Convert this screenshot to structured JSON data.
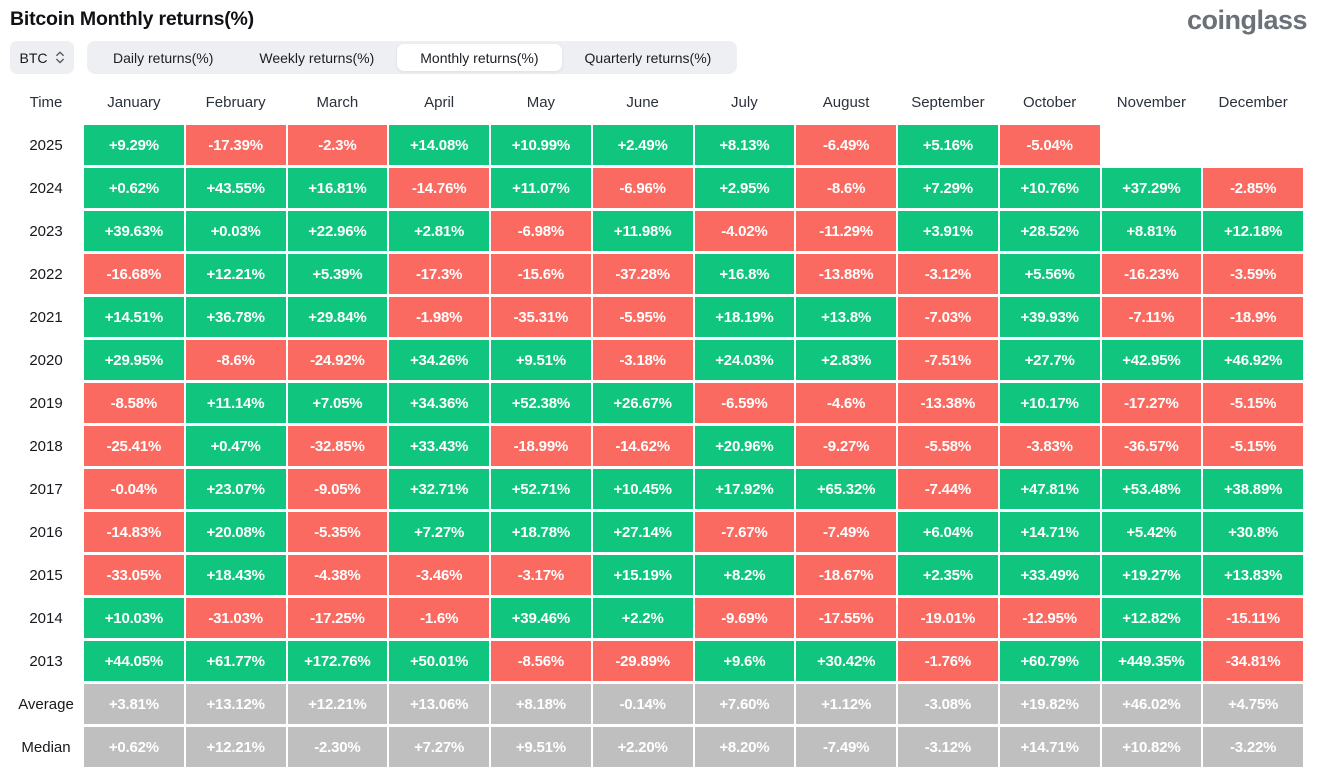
{
  "header": {
    "title": "Bitcoin Monthly returns(%)",
    "brand": "coinglass"
  },
  "controls": {
    "coin_select": {
      "value": "BTC"
    },
    "tabs": [
      {
        "label": "Daily returns(%)",
        "active": false
      },
      {
        "label": "Weekly returns(%)",
        "active": false
      },
      {
        "label": "Monthly returns(%)",
        "active": true
      },
      {
        "label": "Quarterly returns(%)",
        "active": false
      }
    ]
  },
  "colors": {
    "positive": "#10c57e",
    "negative": "#fa6a61",
    "neutral": "#bfbfbf"
  },
  "chart_data": {
    "type": "heatmap",
    "title": "Bitcoin Monthly returns(%)",
    "unit": "%",
    "time_label": "Time",
    "x_labels": [
      "January",
      "February",
      "March",
      "April",
      "May",
      "June",
      "July",
      "August",
      "September",
      "October",
      "November",
      "December"
    ],
    "rows": [
      {
        "label": "2025",
        "type": "year",
        "values": [
          "+9.29%",
          "-17.39%",
          "-2.3%",
          "+14.08%",
          "+10.99%",
          "+2.49%",
          "+8.13%",
          "-6.49%",
          "+5.16%",
          "-5.04%",
          null,
          null
        ]
      },
      {
        "label": "2024",
        "type": "year",
        "values": [
          "+0.62%",
          "+43.55%",
          "+16.81%",
          "-14.76%",
          "+11.07%",
          "-6.96%",
          "+2.95%",
          "-8.6%",
          "+7.29%",
          "+10.76%",
          "+37.29%",
          "-2.85%"
        ]
      },
      {
        "label": "2023",
        "type": "year",
        "values": [
          "+39.63%",
          "+0.03%",
          "+22.96%",
          "+2.81%",
          "-6.98%",
          "+11.98%",
          "-4.02%",
          "-11.29%",
          "+3.91%",
          "+28.52%",
          "+8.81%",
          "+12.18%"
        ]
      },
      {
        "label": "2022",
        "type": "year",
        "values": [
          "-16.68%",
          "+12.21%",
          "+5.39%",
          "-17.3%",
          "-15.6%",
          "-37.28%",
          "+16.8%",
          "-13.88%",
          "-3.12%",
          "+5.56%",
          "-16.23%",
          "-3.59%"
        ]
      },
      {
        "label": "2021",
        "type": "year",
        "values": [
          "+14.51%",
          "+36.78%",
          "+29.84%",
          "-1.98%",
          "-35.31%",
          "-5.95%",
          "+18.19%",
          "+13.8%",
          "-7.03%",
          "+39.93%",
          "-7.11%",
          "-18.9%"
        ]
      },
      {
        "label": "2020",
        "type": "year",
        "values": [
          "+29.95%",
          "-8.6%",
          "-24.92%",
          "+34.26%",
          "+9.51%",
          "-3.18%",
          "+24.03%",
          "+2.83%",
          "-7.51%",
          "+27.7%",
          "+42.95%",
          "+46.92%"
        ]
      },
      {
        "label": "2019",
        "type": "year",
        "values": [
          "-8.58%",
          "+11.14%",
          "+7.05%",
          "+34.36%",
          "+52.38%",
          "+26.67%",
          "-6.59%",
          "-4.6%",
          "-13.38%",
          "+10.17%",
          "-17.27%",
          "-5.15%"
        ]
      },
      {
        "label": "2018",
        "type": "year",
        "values": [
          "-25.41%",
          "+0.47%",
          "-32.85%",
          "+33.43%",
          "-18.99%",
          "-14.62%",
          "+20.96%",
          "-9.27%",
          "-5.58%",
          "-3.83%",
          "-36.57%",
          "-5.15%"
        ]
      },
      {
        "label": "2017",
        "type": "year",
        "values": [
          "-0.04%",
          "+23.07%",
          "-9.05%",
          "+32.71%",
          "+52.71%",
          "+10.45%",
          "+17.92%",
          "+65.32%",
          "-7.44%",
          "+47.81%",
          "+53.48%",
          "+38.89%"
        ]
      },
      {
        "label": "2016",
        "type": "year",
        "values": [
          "-14.83%",
          "+20.08%",
          "-5.35%",
          "+7.27%",
          "+18.78%",
          "+27.14%",
          "-7.67%",
          "-7.49%",
          "+6.04%",
          "+14.71%",
          "+5.42%",
          "+30.8%"
        ]
      },
      {
        "label": "2015",
        "type": "year",
        "values": [
          "-33.05%",
          "+18.43%",
          "-4.38%",
          "-3.46%",
          "-3.17%",
          "+15.19%",
          "+8.2%",
          "-18.67%",
          "+2.35%",
          "+33.49%",
          "+19.27%",
          "+13.83%"
        ]
      },
      {
        "label": "2014",
        "type": "year",
        "values": [
          "+10.03%",
          "-31.03%",
          "-17.25%",
          "-1.6%",
          "+39.46%",
          "+2.2%",
          "-9.69%",
          "-17.55%",
          "-19.01%",
          "-12.95%",
          "+12.82%",
          "-15.11%"
        ]
      },
      {
        "label": "2013",
        "type": "year",
        "values": [
          "+44.05%",
          "+61.77%",
          "+172.76%",
          "+50.01%",
          "-8.56%",
          "-29.89%",
          "+9.6%",
          "+30.42%",
          "-1.76%",
          "+60.79%",
          "+449.35%",
          "-34.81%"
        ]
      },
      {
        "label": "Average",
        "type": "summary",
        "values": [
          "+3.81%",
          "+13.12%",
          "+12.21%",
          "+13.06%",
          "+8.18%",
          "-0.14%",
          "+7.60%",
          "+1.12%",
          "-3.08%",
          "+19.82%",
          "+46.02%",
          "+4.75%"
        ]
      },
      {
        "label": "Median",
        "type": "summary",
        "values": [
          "+0.62%",
          "+12.21%",
          "-2.30%",
          "+7.27%",
          "+9.51%",
          "+2.20%",
          "+8.20%",
          "-7.49%",
          "-3.12%",
          "+14.71%",
          "+10.82%",
          "-3.22%"
        ]
      }
    ]
  }
}
